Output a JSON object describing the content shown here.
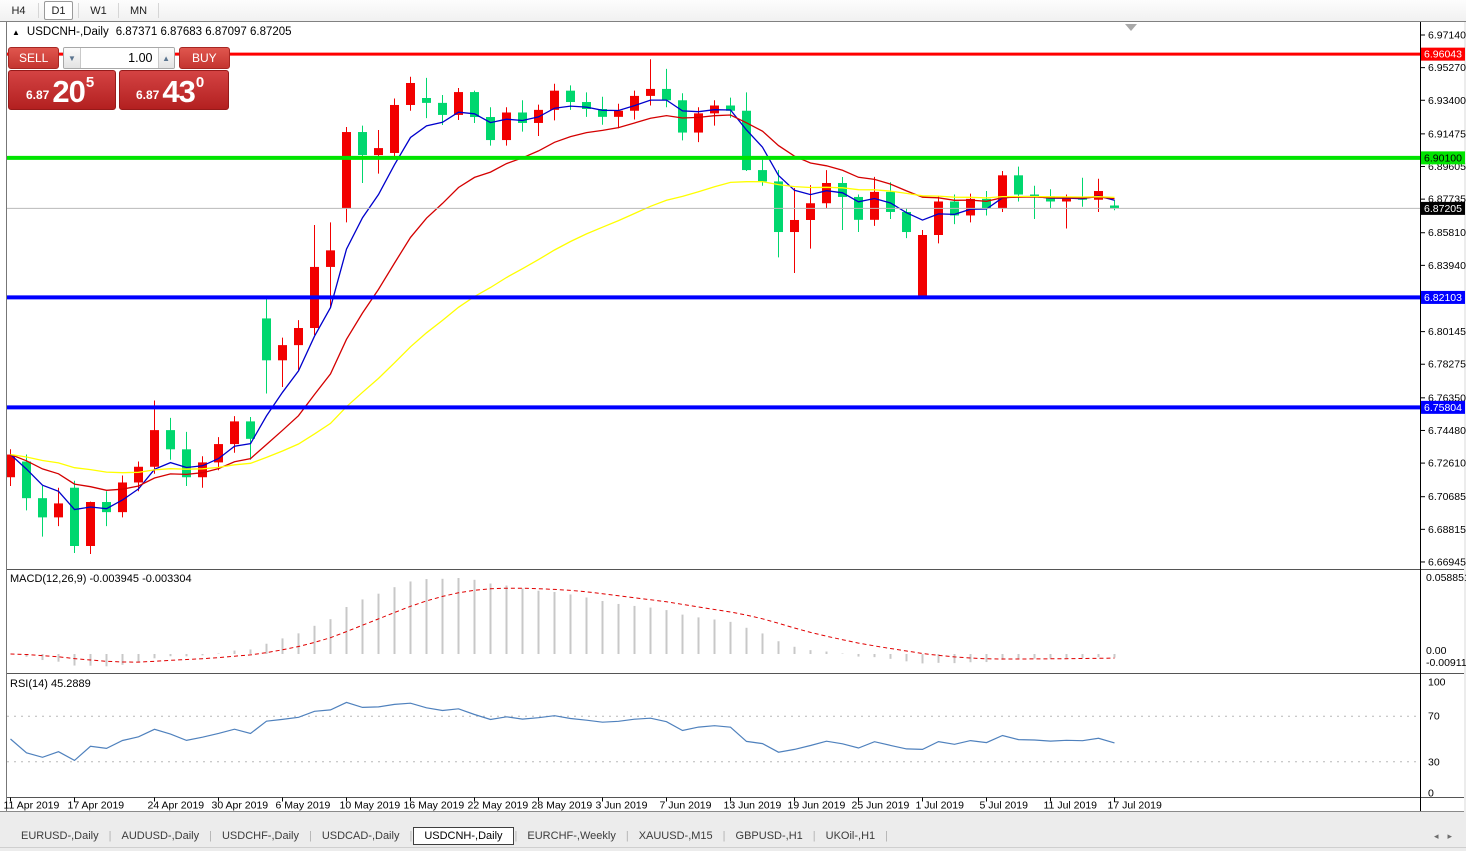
{
  "toolbar": {
    "timeframes": [
      {
        "label": "H4",
        "active": false
      },
      {
        "label": "D1",
        "active": true
      },
      {
        "label": "W1",
        "active": false
      },
      {
        "label": "MN",
        "active": false
      }
    ]
  },
  "chart": {
    "title_marker": "▲",
    "title_symbol": "USDCNH-,Daily",
    "title_ohlc": "6.87371 6.87683 6.87097 6.87205",
    "macd_label": "MACD(12,26,9) -0.003945 -0.003304",
    "rsi_label": "RSI(14) 45.2889",
    "trade_widget": {
      "sell_label": "SELL",
      "buy_label": "BUY",
      "volume": "1.00",
      "spin_down_icon": "▼",
      "spin_up_icon": "▲",
      "sell_price": {
        "small": "6.87",
        "big": "20",
        "sup": "5"
      },
      "buy_price": {
        "small": "6.87",
        "big": "43",
        "sup": "0"
      }
    }
  },
  "chart_data": {
    "type": "candlestick",
    "symbol": "USDCNH-",
    "timeframe": "Daily",
    "current_ohlc": {
      "open": 6.87371,
      "high": 6.87683,
      "low": 6.87097,
      "close": 6.87205
    },
    "bull_color": "#f20000",
    "bear_color": "#00d76e",
    "candles": [
      [
        6.718,
        6.734,
        6.713,
        6.731
      ],
      [
        6.727,
        6.731,
        6.699,
        6.706
      ],
      [
        6.706,
        6.713,
        6.684,
        6.695
      ],
      [
        6.695,
        6.712,
        6.69,
        6.703
      ],
      [
        6.712,
        6.716,
        6.6746,
        6.6786
      ],
      [
        6.6786,
        6.704,
        6.674,
        6.7038
      ],
      [
        6.7038,
        6.71,
        6.69,
        6.698
      ],
      [
        6.698,
        6.719,
        6.695,
        6.715
      ],
      [
        6.715,
        6.727,
        6.71,
        6.724
      ],
      [
        6.724,
        6.762,
        6.72,
        6.745
      ],
      [
        6.745,
        6.752,
        6.728,
        6.734
      ],
      [
        6.734,
        6.744,
        6.713,
        6.718
      ],
      [
        6.718,
        6.73,
        6.712,
        6.7265
      ],
      [
        6.7265,
        6.741,
        6.722,
        6.737
      ],
      [
        6.737,
        6.753,
        6.732,
        6.75
      ],
      [
        6.75,
        6.7525,
        6.728,
        6.74
      ],
      [
        6.809,
        6.8213,
        6.766,
        6.785
      ],
      [
        6.785,
        6.798,
        6.7697,
        6.7937
      ],
      [
        6.7937,
        6.808,
        6.7794,
        6.8035
      ],
      [
        6.8035,
        6.8625,
        6.7995,
        6.8385
      ],
      [
        6.8385,
        6.864,
        6.815,
        6.848
      ],
      [
        6.872,
        6.9187,
        6.864,
        6.9158
      ],
      [
        6.9158,
        6.9195,
        6.8866,
        6.9026
      ],
      [
        6.9026,
        6.917,
        6.892,
        6.9066
      ],
      [
        6.9038,
        6.935,
        6.9,
        6.9313
      ],
      [
        6.9313,
        6.9475,
        6.928,
        6.9439
      ],
      [
        6.9353,
        6.9468,
        6.9238,
        6.9325
      ],
      [
        6.9325,
        6.937,
        6.9198,
        6.9256
      ],
      [
        6.9256,
        6.941,
        6.9227,
        6.9387
      ],
      [
        6.9387,
        6.9395,
        6.921,
        6.9244
      ],
      [
        6.9244,
        6.93,
        6.908,
        6.9112
      ],
      [
        6.9112,
        6.93,
        6.908,
        6.927
      ],
      [
        6.927,
        6.934,
        6.916,
        6.921
      ],
      [
        6.921,
        6.9315,
        6.9135,
        6.9285
      ],
      [
        6.9285,
        6.9435,
        6.9225,
        6.9395
      ],
      [
        6.9395,
        6.9425,
        6.9285,
        6.933
      ],
      [
        6.933,
        6.9385,
        6.9245,
        6.929
      ],
      [
        6.929,
        6.936,
        6.92,
        6.9245
      ],
      [
        6.9245,
        6.932,
        6.918,
        6.928
      ],
      [
        6.928,
        6.9395,
        6.923,
        6.9365
      ],
      [
        6.9365,
        6.9575,
        6.931,
        6.9405
      ],
      [
        6.9405,
        6.952,
        6.93,
        6.934
      ],
      [
        6.934,
        6.938,
        6.911,
        6.9155
      ],
      [
        6.9155,
        6.93,
        6.91,
        6.9265
      ],
      [
        6.9265,
        6.934,
        6.9195,
        6.931
      ],
      [
        6.931,
        6.9355,
        6.924,
        6.928
      ],
      [
        6.928,
        6.9385,
        6.8935,
        6.894
      ],
      [
        6.894,
        6.9,
        6.885,
        6.8875
      ],
      [
        6.8875,
        6.894,
        6.844,
        6.8585
      ],
      [
        6.8585,
        6.8837,
        6.835,
        6.8654
      ],
      [
        6.8654,
        6.8854,
        6.849,
        6.875
      ],
      [
        6.875,
        6.894,
        6.872,
        6.8866
      ],
      [
        6.8866,
        6.89,
        6.8597,
        6.8786
      ],
      [
        6.8786,
        6.88,
        6.8585,
        6.8655
      ],
      [
        6.8655,
        6.8901,
        6.862,
        6.8815
      ],
      [
        6.8815,
        6.887,
        6.866,
        6.87
      ],
      [
        6.87,
        6.872,
        6.855,
        6.8585
      ],
      [
        6.8213,
        6.8597,
        6.8205,
        6.8568
      ],
      [
        6.8568,
        6.879,
        6.852,
        6.876
      ],
      [
        6.876,
        6.88,
        6.863,
        6.868
      ],
      [
        6.868,
        6.8805,
        6.864,
        6.8775
      ],
      [
        6.8775,
        6.882,
        6.868,
        6.872
      ],
      [
        6.872,
        6.8935,
        6.87,
        6.891
      ],
      [
        6.891,
        6.896,
        6.876,
        6.88
      ],
      [
        6.88,
        6.885,
        6.866,
        6.879
      ],
      [
        6.879,
        6.883,
        6.872,
        6.876
      ],
      [
        6.876,
        6.88,
        6.8605,
        6.878
      ],
      [
        6.878,
        6.8896,
        6.873,
        6.877
      ],
      [
        6.877,
        6.889,
        6.87,
        6.882
      ],
      [
        6.87371,
        6.87683,
        6.87097,
        6.87205
      ]
    ],
    "date_ticks": [
      {
        "index": 0,
        "label": "11 Apr 2019"
      },
      {
        "index": 4,
        "label": "17 Apr 2019"
      },
      {
        "index": 9,
        "label": "24 Apr 2019"
      },
      {
        "index": 13,
        "label": "30 Apr 2019"
      },
      {
        "index": 17,
        "label": "6 May 2019"
      },
      {
        "index": 21,
        "label": "10 May 2019"
      },
      {
        "index": 25,
        "label": "16 May 2019"
      },
      {
        "index": 29,
        "label": "22 May 2019"
      },
      {
        "index": 33,
        "label": "28 May 2019"
      },
      {
        "index": 37,
        "label": "3 Jun 2019"
      },
      {
        "index": 41,
        "label": "7 Jun 2019"
      },
      {
        "index": 45,
        "label": "13 Jun 2019"
      },
      {
        "index": 49,
        "label": "19 Jun 2019"
      },
      {
        "index": 53,
        "label": "25 Jun 2019"
      },
      {
        "index": 57,
        "label": "1 Jul 2019"
      },
      {
        "index": 61,
        "label": "5 Jul 2019"
      },
      {
        "index": 65,
        "label": "11 Jul 2019"
      },
      {
        "index": 69,
        "label": "17 Jul 2019"
      }
    ],
    "price_axis_ticks": [
      "6.97140",
      "6.95270",
      "6.93400",
      "6.91475",
      "6.89605",
      "6.87735",
      "6.85810",
      "6.83940",
      "6.80145",
      "6.78275",
      "6.76350",
      "6.74480",
      "6.72610",
      "6.70685",
      "6.68815",
      "6.66945"
    ],
    "price_badges": [
      {
        "value": "6.96043",
        "bg": "#ff0000",
        "fg": "#ffffff"
      },
      {
        "value": "6.90100",
        "bg": "#00e400",
        "fg": "#000000"
      },
      {
        "value": "6.87205",
        "bg": "#000000",
        "fg": "#ffffff"
      },
      {
        "value": "6.82103",
        "bg": "#0000ff",
        "fg": "#ffffff"
      },
      {
        "value": "6.75804",
        "bg": "#0000ff",
        "fg": "#ffffff"
      }
    ],
    "hlines": [
      {
        "price": 6.96043,
        "color": "#ff0000",
        "width": 3
      },
      {
        "price": 6.901,
        "color": "#00e400",
        "width": 4
      },
      {
        "price": 6.82103,
        "color": "#0000ff",
        "width": 4
      },
      {
        "price": 6.75804,
        "color": "#0000ff",
        "width": 4
      }
    ],
    "current_price_line": {
      "price": 6.87205,
      "color": "#b9b9b9"
    },
    "ma_lines": [
      {
        "period": 5,
        "color": "#0000cc"
      },
      {
        "period": 13,
        "color": "#d40000"
      },
      {
        "period": 34,
        "color": "#ffff00"
      }
    ],
    "macd": {
      "params": "12,26,9",
      "value": -0.003945,
      "signal_value": -0.003304,
      "axis_labels": [
        "0.058851",
        "0.00",
        "-0.009116"
      ],
      "histogram_color": "#c8c8c8",
      "signal_color": "#e00000"
    },
    "rsi": {
      "period": 14,
      "value": 45.2889,
      "axis_labels": [
        "100",
        "70",
        "30",
        "0"
      ],
      "levels": [
        70,
        30
      ],
      "line_color": "#4f81bd"
    }
  },
  "tabs": {
    "nav_left": "◂",
    "nav_right": "▸",
    "items": [
      {
        "label": "EURUSD-,Daily",
        "active": false
      },
      {
        "label": "AUDUSD-,Daily",
        "active": false
      },
      {
        "label": "USDCHF-,Daily",
        "active": false
      },
      {
        "label": "USDCAD-,Daily",
        "active": false
      },
      {
        "label": "USDCNH-,Daily",
        "active": true
      },
      {
        "label": "EURCHF-,Weekly",
        "active": false
      },
      {
        "label": "XAUUSD-,M15",
        "active": false
      },
      {
        "label": "GBPUSD-,H1",
        "active": false
      },
      {
        "label": "UKOil-,H1",
        "active": false
      }
    ]
  }
}
